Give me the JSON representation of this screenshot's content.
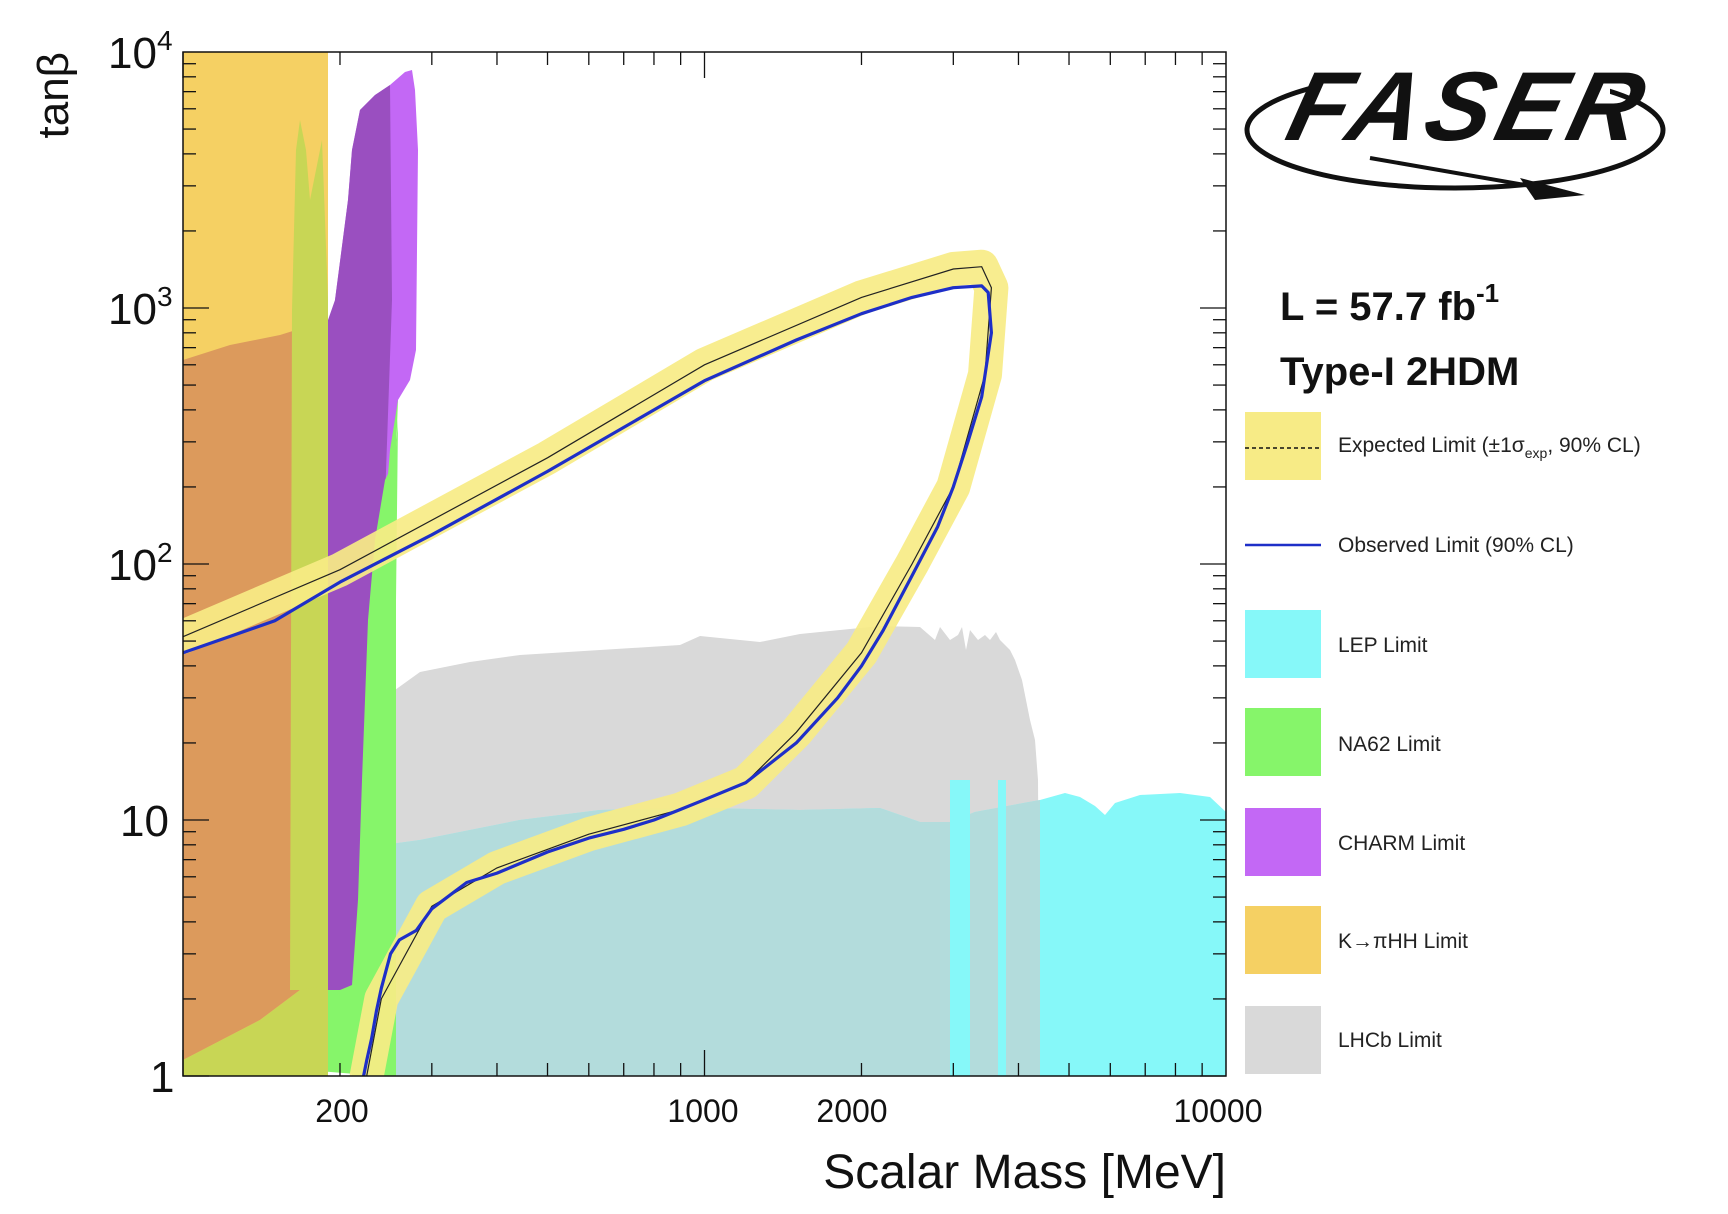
{
  "chart_data": {
    "type": "area",
    "title": "FASER Type-I 2HDM scalar exclusion",
    "xlabel": "Scalar Mass [MeV]",
    "ylabel": "tanβ",
    "xscale": "log",
    "yscale": "log",
    "xlim": [
      100,
      10000
    ],
    "ylim": [
      1,
      10000
    ],
    "x_ticks": [
      {
        "value": 200,
        "label": "200"
      },
      {
        "value": 1000,
        "label": "1000"
      },
      {
        "value": 2000,
        "label": "2000"
      },
      {
        "value": 10000,
        "label": "10000"
      }
    ],
    "y_ticks": [
      {
        "value": 1,
        "label": "1"
      },
      {
        "value": 10,
        "label": "10"
      },
      {
        "value": 100,
        "label": "10",
        "sup": "2"
      },
      {
        "value": 1000,
        "label": "10",
        "sup": "3"
      },
      {
        "value": 10000,
        "label": "10",
        "sup": "4"
      }
    ],
    "logo": "FASER",
    "luminosity": {
      "prefix": "L = 57.7 fb",
      "sup": "-1"
    },
    "model": "Type-I 2HDM",
    "colors": {
      "expected_band": "#f7eb86",
      "observed": "#1e2fc8",
      "lep": "#86f8f9",
      "na62": "#86f56a",
      "charm": "#c368f5",
      "kpihh": "#f5d063",
      "lhcb": "#d9d9d9",
      "overlap_lep_lhcb": "#b3dcdc",
      "overlap_kpihh_lhcb": "#dc9a5c"
    },
    "legend": [
      {
        "key": "expected",
        "label": "Expected Limit (±1",
        "sigma": "σ",
        "sub": "exp",
        "label_end": ", 90% CL)"
      },
      {
        "key": "observed",
        "label": "Observed Limit (90% CL)"
      },
      {
        "key": "lep",
        "label": "LEP Limit"
      },
      {
        "key": "na62",
        "label": "NA62 Limit"
      },
      {
        "key": "charm",
        "label": "CHARM Limit"
      },
      {
        "key": "kpihh",
        "label": "K→πHH Limit"
      },
      {
        "key": "lhcb",
        "label": "LHCb Limit"
      }
    ],
    "series": [
      {
        "name": "Observed Limit (90% CL)",
        "x": [
          100,
          150,
          200,
          300,
          500,
          800,
          1000,
          1500,
          2000,
          2500,
          3000,
          3400,
          3500,
          3550,
          3400,
          3200,
          3000,
          2800,
          2500,
          2200,
          2000,
          1800,
          1500,
          1200,
          1000,
          900,
          800,
          700,
          600,
          500,
          400,
          350,
          300,
          280,
          260,
          250,
          240,
          235,
          230,
          225,
          222
        ],
        "y": [
          45,
          60,
          85,
          130,
          230,
          400,
          520,
          750,
          950,
          1100,
          1200,
          1220,
          1150,
          800,
          450,
          300,
          200,
          140,
          90,
          55,
          40,
          30,
          20,
          14,
          12,
          11,
          10,
          9.2,
          8.5,
          7.5,
          6.2,
          5.7,
          4.5,
          3.7,
          3.4,
          3.0,
          2.2,
          1.8,
          1.4,
          1.15,
          1.0
        ]
      },
      {
        "name": "Expected Limit (90% CL)",
        "x": [
          100,
          200,
          500,
          1000,
          2000,
          3000,
          3400,
          3550,
          3450,
          3000,
          2500,
          2000,
          1500,
          1200,
          900,
          600,
          400,
          300,
          240,
          225
        ],
        "y": [
          52,
          95,
          260,
          600,
          1100,
          1420,
          1450,
          1200,
          550,
          200,
          100,
          45,
          22,
          14,
          11,
          8.8,
          6.5,
          4.6,
          2.0,
          1.0
        ]
      }
    ]
  }
}
